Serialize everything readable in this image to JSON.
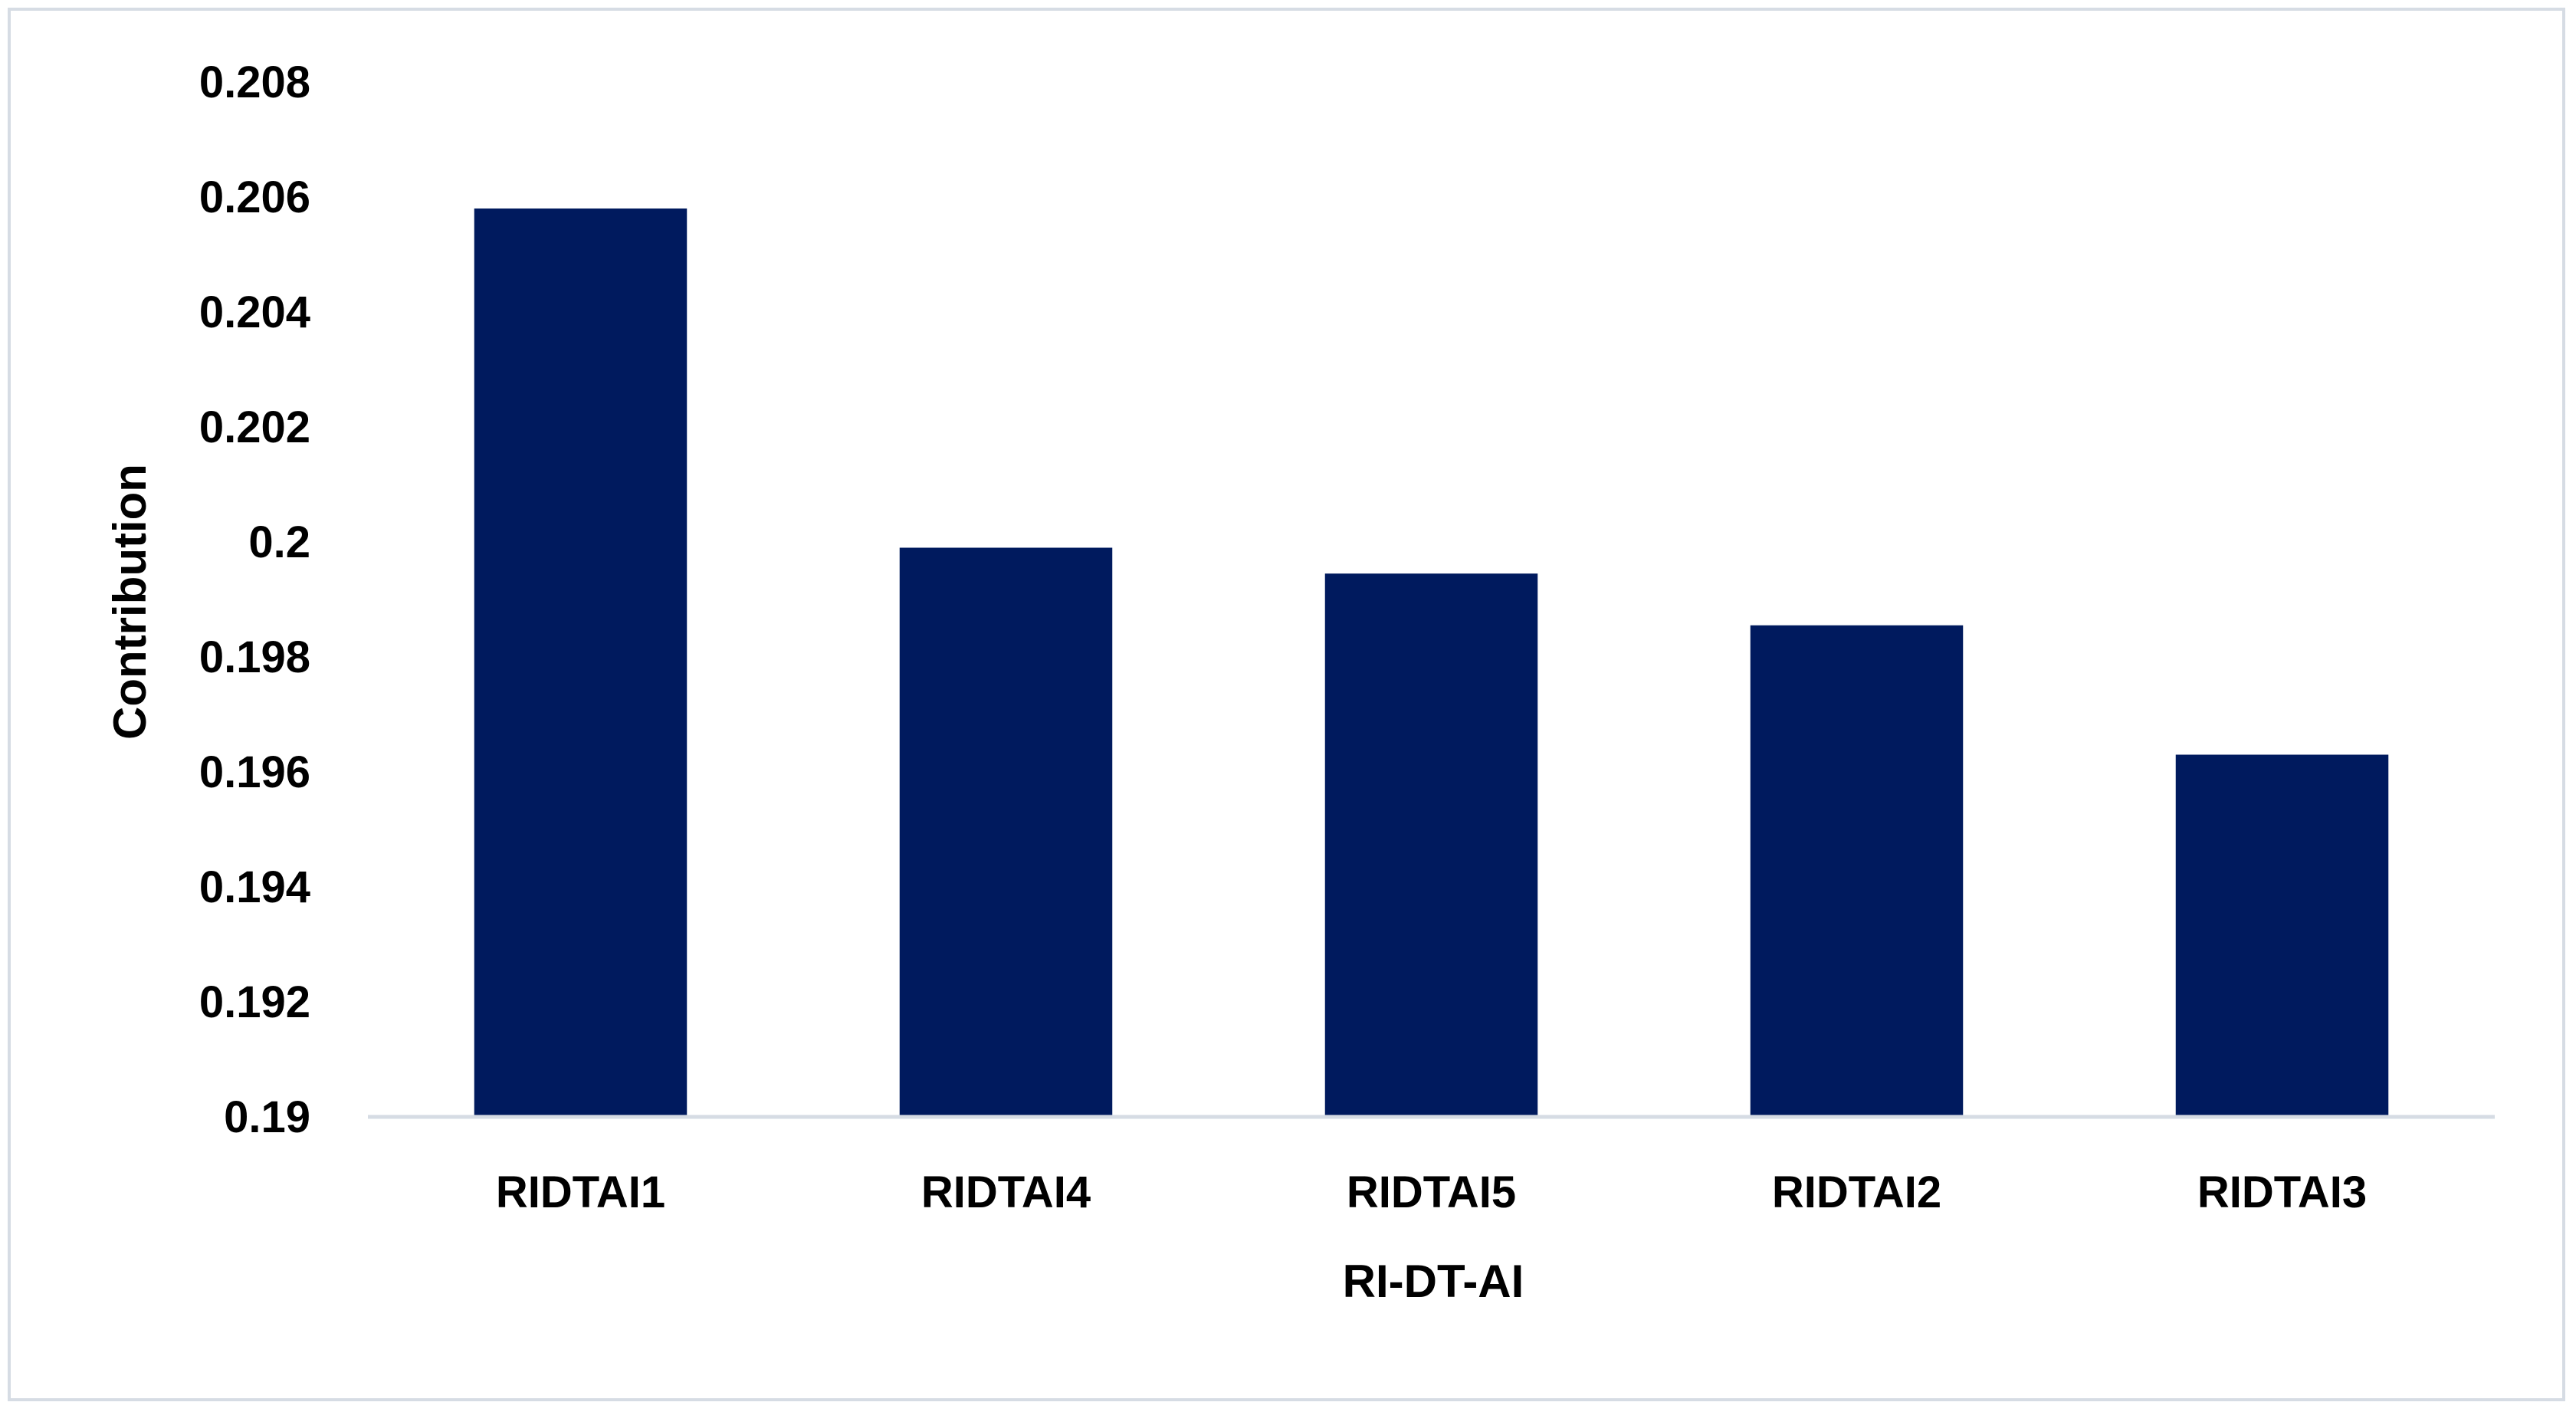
{
  "chart_data": {
    "type": "bar",
    "categories": [
      "RIDTAI1",
      "RIDTAI4",
      "RIDTAI5",
      "RIDTAI2",
      "RIDTAI3"
    ],
    "values": [
      0.2058,
      0.1999,
      0.19945,
      0.19855,
      0.1963
    ],
    "xlabel": "RI-DT-AI",
    "ylabel": "Contribution",
    "ylim": [
      0.19,
      0.208
    ],
    "yticks": [
      "0.19",
      "0.192",
      "0.194",
      "0.196",
      "0.198",
      "0.2",
      "0.202",
      "0.204",
      "0.206",
      "0.208"
    ],
    "grid": false,
    "legend": "none",
    "bar_color": "#001a5e",
    "axis_color": "#d6dce4"
  }
}
